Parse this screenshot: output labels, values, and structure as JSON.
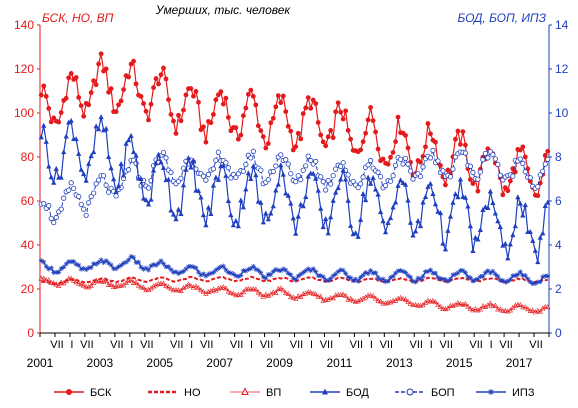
{
  "chart_data": {
    "type": "line",
    "title": "Умерших, тыс. человек",
    "left_axis_label": "БСК, НО, ВП",
    "right_axis_label": "БОД, БОП, ИПЗ",
    "left_ylim": [
      0,
      140
    ],
    "left_ticks": [
      0,
      20,
      40,
      60,
      80,
      100,
      120,
      140
    ],
    "right_ylim": [
      0,
      14
    ],
    "right_ticks": [
      0,
      2,
      4,
      6,
      8,
      10,
      12,
      14
    ],
    "x_major_labels": [
      "2001",
      "2003",
      "2005",
      "2007",
      "2009",
      "2011",
      "2013",
      "2015",
      "2017"
    ],
    "x_minor_label": "VII",
    "x_label_sequence": [
      "2001",
      "VII",
      "I",
      "VII",
      "2003",
      "VII",
      "I",
      "VII",
      "2005",
      "VII",
      "I",
      "VII",
      "2007",
      "VII",
      "I",
      "VII",
      "2009",
      "VII",
      "I",
      "VII",
      "2011",
      "VII",
      "I",
      "VII",
      "2013",
      "VII",
      "I",
      "VII",
      "2015",
      "VII",
      "I",
      "VII",
      "2017",
      "VII"
    ],
    "x_start": "2001-01",
    "x_end": "2017-12",
    "grid": false,
    "legend_position": "bottom",
    "series": [
      {
        "name": "БСК",
        "axis": "left",
        "color": "#e41a1c",
        "marker": "filled-circle",
        "line": "solid",
        "annual_mean": [
          101,
          107,
          113,
          111,
          108,
          101,
          100,
          98,
          96,
          96,
          92,
          89,
          85,
          82,
          79,
          75,
          72
        ],
        "seasonal_amplitude": 10
      },
      {
        "name": "НО",
        "axis": "left",
        "color": "#e41a1c",
        "marker": "none",
        "line": "dashed",
        "annual_mean": [
          22.8,
          23.5,
          24.0,
          24.2,
          24.3,
          24.4,
          24.4,
          24.4,
          24.3,
          24.3,
          24.2,
          24.1,
          24.0,
          24.1,
          24.2,
          24.0,
          23.8
        ],
        "seasonal_amplitude": 0.8
      },
      {
        "name": "ВП",
        "axis": "left",
        "color": "#e41a1c",
        "marker": "open-triangle",
        "line": "thin",
        "annual_mean": [
          23.5,
          23.0,
          22.5,
          22.0,
          21.0,
          20.0,
          19.0,
          18.5,
          18.0,
          17.0,
          16.0,
          15.0,
          14.0,
          13.0,
          12.0,
          11.5,
          11.0
        ],
        "seasonal_amplitude": 1.5
      },
      {
        "name": "БОД",
        "axis": "right",
        "color": "#1f3fbf",
        "marker": "filled-triangle",
        "line": "solid",
        "annual_mean": [
          8.0,
          8.3,
          8.3,
          7.5,
          6.8,
          6.4,
          6.3,
          6.2,
          6.2,
          6.0,
          5.9,
          5.9,
          5.8,
          5.6,
          5.4,
          5.0,
          4.7
        ],
        "seasonal_amplitude": 1.2
      },
      {
        "name": "БОП",
        "axis": "right",
        "color": "#1f3fbf",
        "marker": "open-circle",
        "line": "dashed",
        "annual_mean": [
          5.5,
          6.0,
          6.4,
          7.1,
          7.5,
          7.4,
          7.5,
          7.5,
          7.5,
          7.4,
          7.2,
          7.2,
          7.4,
          7.6,
          7.7,
          7.7,
          7.3
        ],
        "seasonal_amplitude": 0.6
      },
      {
        "name": "ИПЗ",
        "axis": "right",
        "color": "#1f3fbf",
        "marker": "star",
        "line": "solid",
        "annual_mean": [
          3.0,
          3.0,
          3.1,
          3.2,
          3.0,
          2.8,
          2.8,
          2.8,
          2.7,
          2.7,
          2.6,
          2.6,
          2.6,
          2.6,
          2.6,
          2.6,
          2.5
        ],
        "seasonal_amplitude": 0.2
      }
    ]
  }
}
